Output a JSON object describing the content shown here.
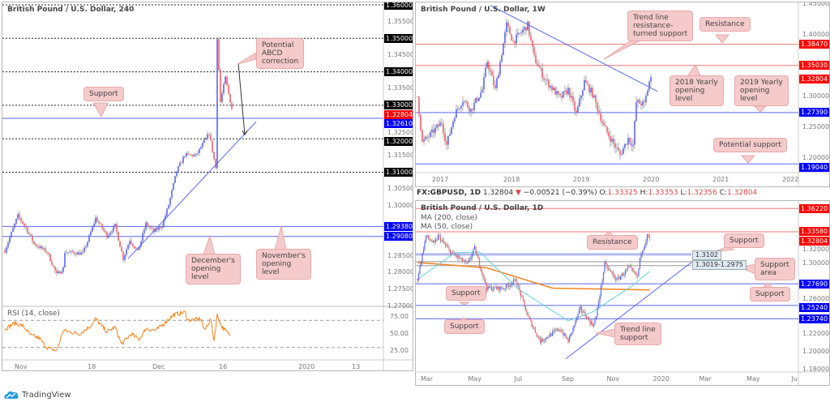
{
  "colors": {
    "up": "#5a66f2",
    "down": "#f0626c",
    "wick": "#8a8a8a",
    "level_red": "#f07474",
    "level_blue": "#5a66f2",
    "callout": "#f5caca",
    "rsi": "#f7821b",
    "ma200": "#f7821b",
    "ma50": "#5fd3d8",
    "price_box": "#000000",
    "last_price": "#ff0000",
    "blue_box": "#0000ff"
  },
  "brand": {
    "name": "TradingView"
  },
  "chart_data": [
    {
      "id": "h4",
      "type": "candlestick",
      "title": "British Pound / U.S. Dollar, 240",
      "ylim": [
        1.27,
        1.36
      ],
      "yticks": [
        "1.36000",
        "1.35500",
        "1.35000",
        "1.34500",
        "1.34000",
        "1.33500",
        "1.33000",
        "1.32500",
        "1.32000",
        "1.31500",
        "1.31000",
        "1.30500",
        "1.30000",
        "1.28500",
        "1.28000",
        "1.27500",
        "1.27000"
      ],
      "boxed": [
        "1.36000",
        "1.35000",
        "1.34000",
        "1.33000",
        "1.32000",
        "1.31000"
      ],
      "xticks": [
        {
          "label": "Nov",
          "bar": 10
        },
        {
          "label": "18",
          "bar": 55
        },
        {
          "label": "Dec",
          "bar": 95
        },
        {
          "label": "16",
          "bar": 136
        },
        {
          "label": "2020",
          "bar": 185
        },
        {
          "label": "13",
          "bar": 218
        }
      ],
      "close_path": [
        [
          0,
          1.2866
        ],
        [
          8,
          1.297
        ],
        [
          13,
          1.2934
        ],
        [
          18,
          1.2886
        ],
        [
          26,
          1.2862
        ],
        [
          32,
          1.2794
        ],
        [
          36,
          1.2813
        ],
        [
          37,
          1.2862
        ],
        [
          48,
          1.2857
        ],
        [
          51,
          1.2893
        ],
        [
          56,
          1.2963
        ],
        [
          63,
          1.291
        ],
        [
          68,
          1.294
        ],
        [
          73,
          1.2842
        ],
        [
          77,
          1.2898
        ],
        [
          82,
          1.2862
        ],
        [
          87,
          1.2946
        ],
        [
          92,
          1.2922
        ],
        [
          97,
          1.2941
        ],
        [
          101,
          1.3002
        ],
        [
          106,
          1.3104
        ],
        [
          111,
          1.3152
        ],
        [
          118,
          1.315
        ],
        [
          126,
          1.3217
        ],
        [
          130,
          1.3112
        ],
        [
          131,
          1.3503
        ],
        [
          133,
          1.331
        ],
        [
          136,
          1.3382
        ],
        [
          138,
          1.3334
        ],
        [
          140,
          1.329
        ]
      ],
      "levels": [
        {
          "price": 1.36,
          "style": "dashed",
          "label": "1.36000",
          "box": "black"
        },
        {
          "price": 1.35,
          "style": "dashed",
          "label": "1.35000",
          "box": "black"
        },
        {
          "price": 1.34,
          "style": "dashed",
          "label": "1.34000",
          "box": "black"
        },
        {
          "price": 1.33,
          "style": "dashed",
          "label": "1.33000",
          "box": "black"
        },
        {
          "price": 1.32,
          "style": "dashed",
          "label": "1.32000",
          "box": "black"
        },
        {
          "price": 1.31,
          "style": "dashed",
          "label": "1.31000",
          "box": "black"
        },
        {
          "price": 1.3261,
          "style": "blue",
          "label": "1.32610",
          "box": "blue"
        },
        {
          "price": 1.2938,
          "style": "blue",
          "label": "1.29380",
          "box": "blue"
        },
        {
          "price": 1.2908,
          "style": "blue",
          "label": "1.29080",
          "box": "blue"
        },
        {
          "price": 1.32804,
          "style": "none",
          "label": "1.32804",
          "box": "red"
        }
      ],
      "trendline": [
        [
          76,
          1.2842
        ],
        [
          155,
          1.3251
        ]
      ],
      "arrow": [
        [
          144,
          1.3425
        ],
        [
          148,
          1.3212
        ]
      ],
      "rsi": {
        "label": "RSI (14, close)",
        "yticks": [
          "75.00",
          "50.00",
          "25.00"
        ],
        "bands": [
          70,
          30
        ],
        "path": [
          [
            0,
            57
          ],
          [
            6,
            66
          ],
          [
            11,
            62
          ],
          [
            16,
            48
          ],
          [
            21,
            44
          ],
          [
            26,
            30
          ],
          [
            32,
            25
          ],
          [
            36,
            55
          ],
          [
            46,
            50
          ],
          [
            53,
            62
          ],
          [
            56,
            72
          ],
          [
            63,
            53
          ],
          [
            68,
            60
          ],
          [
            72,
            35
          ],
          [
            78,
            50
          ],
          [
            83,
            42
          ],
          [
            87,
            58
          ],
          [
            93,
            55
          ],
          [
            98,
            65
          ],
          [
            104,
            78
          ],
          [
            111,
            82
          ],
          [
            113,
            70
          ],
          [
            121,
            72
          ],
          [
            123,
            55
          ],
          [
            127,
            72
          ],
          [
            129,
            40
          ],
          [
            131,
            78
          ],
          [
            134,
            60
          ],
          [
            139,
            48
          ]
        ]
      },
      "callouts": [
        {
          "text": "Potential\nABCD\ncorrection"
        },
        {
          "text": "Support"
        },
        {
          "text": "December's\nopening\nlevel"
        },
        {
          "text": "November's\nopening\nlevel"
        }
      ]
    },
    {
      "id": "w1",
      "type": "candlestick",
      "title": "British Pound / U.S. Dollar, 1W",
      "ylim": [
        1.18,
        1.45
      ],
      "yticks": [
        "1.45000",
        "1.40000",
        "1.30000",
        "1.25000",
        "1.20000"
      ],
      "xticks": [
        {
          "label": "2017",
          "bar": 13
        },
        {
          "label": "2018",
          "bar": 57
        },
        {
          "label": "2019",
          "bar": 100
        },
        {
          "label": "2020",
          "bar": 143
        },
        {
          "label": "2021",
          "bar": 186
        },
        {
          "label": "2022",
          "bar": 229
        }
      ],
      "close_path": [
        [
          0,
          1.3
        ],
        [
          3,
          1.225
        ],
        [
          8,
          1.238
        ],
        [
          15,
          1.258
        ],
        [
          18,
          1.221
        ],
        [
          23,
          1.271
        ],
        [
          28,
          1.295
        ],
        [
          33,
          1.278
        ],
        [
          40,
          1.311
        ],
        [
          43,
          1.357
        ],
        [
          48,
          1.311
        ],
        [
          55,
          1.416
        ],
        [
          59,
          1.389
        ],
        [
          68,
          1.416
        ],
        [
          72,
          1.363
        ],
        [
          78,
          1.33
        ],
        [
          88,
          1.297
        ],
        [
          93,
          1.311
        ],
        [
          98,
          1.271
        ],
        [
          103,
          1.324
        ],
        [
          108,
          1.304
        ],
        [
          115,
          1.251
        ],
        [
          125,
          1.205
        ],
        [
          130,
          1.232
        ],
        [
          133,
          1.221
        ],
        [
          135,
          1.291
        ],
        [
          140,
          1.287
        ],
        [
          143,
          1.324
        ],
        [
          144,
          1.328
        ]
      ],
      "levels": [
        {
          "price": 1.3847,
          "style": "red",
          "label": "1.38470",
          "box": "red"
        },
        {
          "price": 1.3503,
          "style": "red",
          "label": "1.35030",
          "box": "red"
        },
        {
          "price": 1.32804,
          "style": "none",
          "label": "1.32804",
          "box": "red"
        },
        {
          "price": 1.2739,
          "style": "blue",
          "label": "1.27390",
          "box": "blue"
        },
        {
          "price": 1.1904,
          "style": "blue",
          "label": "1.19040",
          "box": "blue"
        }
      ],
      "trendline": [
        [
          45,
          1.448
        ],
        [
          148,
          1.3085
        ]
      ],
      "callouts": [
        {
          "text": "Trend line\nresistance-\nturned support"
        },
        {
          "text": "Resistance"
        },
        {
          "text": "2018 Yearly\nopening\nlevel"
        },
        {
          "text": "2019 Yearly\nopening\nlevel"
        },
        {
          "text": "Potential support"
        }
      ]
    },
    {
      "id": "d1",
      "type": "candlestick",
      "title": "British Pound / U.S. Dollar, 1D",
      "ylim": [
        1.18,
        1.37
      ],
      "ma_labels": [
        "MA (200, close)",
        "MA (50, close)"
      ],
      "yticks": [
        "1.32000",
        "1.30000",
        "1.26000",
        "1.22000",
        "1.20000",
        "1.18000"
      ],
      "xticks": [
        {
          "label": "Mar",
          "bar": 8
        },
        {
          "label": "May",
          "bar": 47
        },
        {
          "label": "Jul",
          "bar": 85
        },
        {
          "label": "Sep",
          "bar": 124
        },
        {
          "label": "Nov",
          "bar": 161
        },
        {
          "label": "2020",
          "bar": 199
        },
        {
          "label": "Mar",
          "bar": 237
        },
        {
          "label": "May",
          "bar": 276
        },
        {
          "label": "Ju",
          "bar": 313
        }
      ],
      "close_path": [
        [
          0,
          1.2826
        ],
        [
          7,
          1.331
        ],
        [
          14,
          1.322
        ],
        [
          17,
          1.331
        ],
        [
          27,
          1.313
        ],
        [
          41,
          1.299
        ],
        [
          47,
          1.317
        ],
        [
          57,
          1.272
        ],
        [
          71,
          1.272
        ],
        [
          81,
          1.281
        ],
        [
          91,
          1.239
        ],
        [
          101,
          1.212
        ],
        [
          117,
          1.226
        ],
        [
          124,
          1.212
        ],
        [
          134,
          1.249
        ],
        [
          144,
          1.23
        ],
        [
          147,
          1.239
        ],
        [
          154,
          1.299
        ],
        [
          164,
          1.281
        ],
        [
          174,
          1.295
        ],
        [
          181,
          1.285
        ],
        [
          184,
          1.313
        ],
        [
          187,
          1.322
        ],
        [
          189,
          1.331
        ],
        [
          191,
          1.328
        ]
      ],
      "ma200": [
        [
          0,
          1.301
        ],
        [
          57,
          1.295
        ],
        [
          111,
          1.272
        ],
        [
          191,
          1.27
        ]
      ],
      "ma50": [
        [
          0,
          1.282
        ],
        [
          31,
          1.312
        ],
        [
          51,
          1.313
        ],
        [
          84,
          1.27
        ],
        [
          124,
          1.235
        ],
        [
          144,
          1.245
        ],
        [
          177,
          1.275
        ],
        [
          191,
          1.291
        ]
      ],
      "levels": [
        {
          "price": 1.3622,
          "style": "red",
          "label": "1.36220",
          "box": "red"
        },
        {
          "price": 1.3358,
          "style": "red",
          "label": "1.33580",
          "box": "red"
        },
        {
          "price": 1.32804,
          "style": "none",
          "label": "1.32804",
          "box": "red"
        },
        {
          "price": 1.3102,
          "style": "zone",
          "label": "",
          "box": "none"
        },
        {
          "price": 1.3019,
          "style": "gray",
          "label": "",
          "box": "none"
        },
        {
          "price": 1.2975,
          "style": "gray",
          "label": "",
          "box": "none"
        },
        {
          "price": 1.2769,
          "style": "blue",
          "label": "1.27690",
          "box": "blue"
        },
        {
          "price": 1.2524,
          "style": "blue",
          "label": "1.25240",
          "box": "blue"
        },
        {
          "price": 1.2374,
          "style": "blue",
          "label": "1.23740",
          "box": "blue"
        }
      ],
      "zone_labels": [
        "1.3102",
        "1.3019-1.2975"
      ],
      "trendline": [
        [
          122,
          1.192
        ],
        [
          228,
          1.304
        ]
      ],
      "callouts": [
        {
          "text": "Resistance"
        },
        {
          "text": "Support"
        },
        {
          "text": "Support\narea"
        },
        {
          "text": "Support"
        },
        {
          "text": "Support"
        },
        {
          "text": "Support"
        },
        {
          "text": "Trend line\nsupport"
        }
      ]
    }
  ],
  "legend": {
    "symbol": "FX:GBPUSD, 1D",
    "last": "1.32804",
    "arrow": "▼",
    "change": "−0.00521 (−0.39%)",
    "o_label": "O:",
    "o": "1.33325",
    "h_label": "H:",
    "h": "1.33353",
    "l_label": "L:",
    "l": "1.32356",
    "c_label": "C:",
    "c": "1.32804"
  }
}
